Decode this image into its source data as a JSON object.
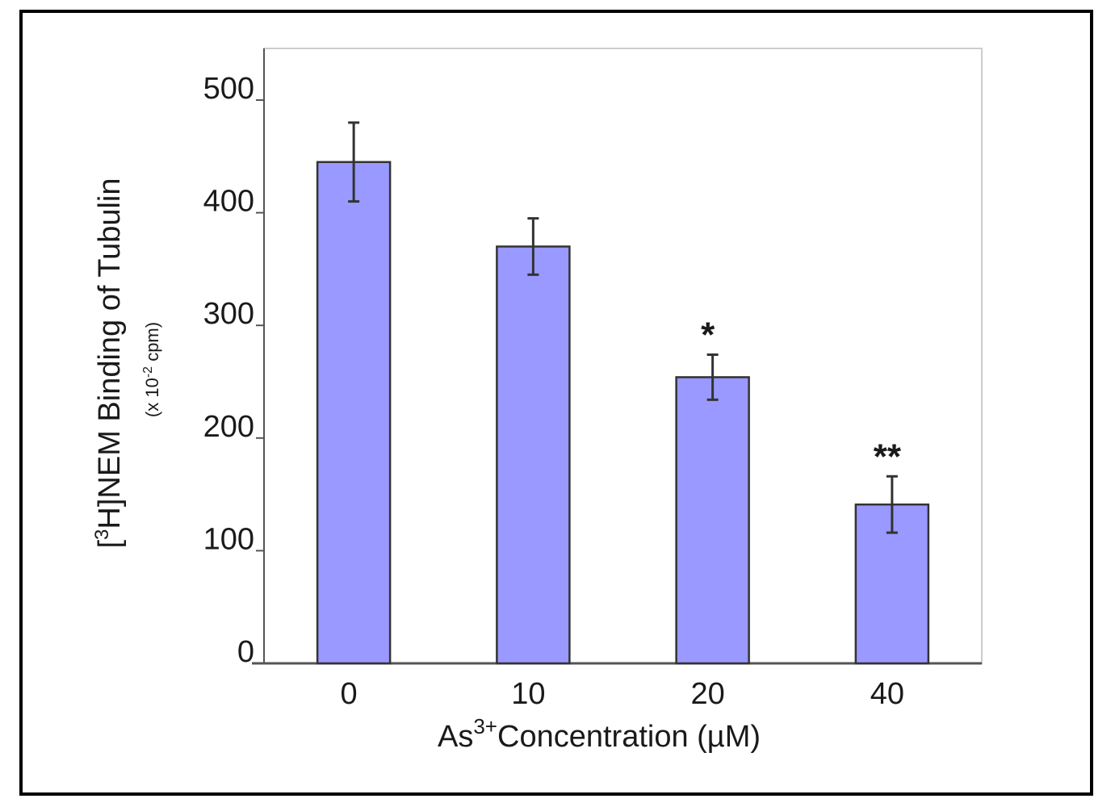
{
  "chart_data": {
    "type": "bar",
    "categories": [
      "0",
      "10",
      "20",
      "40"
    ],
    "values": [
      445,
      370,
      254,
      141
    ],
    "errors": [
      35,
      25,
      20,
      25
    ],
    "annotations": [
      "",
      "",
      "*",
      "**"
    ],
    "title": "",
    "ylabel": {
      "prefix": "[",
      "superscript": "3",
      "main": "H]NEM Binding of Tubulin",
      "units_pre": "(x 10",
      "units_sup": "-2",
      "units_post": " cpm)"
    },
    "xlabel": {
      "prefix": "As",
      "superscript": "3+",
      "main": "Concentration (µM)"
    },
    "yticks": [
      "0",
      "100",
      "200",
      "300",
      "400",
      "500"
    ],
    "ylim": [
      0,
      550
    ],
    "grid": false,
    "colors": {
      "bar_fill": "#9999ff",
      "bar_stroke": "#333333",
      "axis": "#555555",
      "plot_border": "#cccccc",
      "text": "#1a1a1a"
    }
  }
}
